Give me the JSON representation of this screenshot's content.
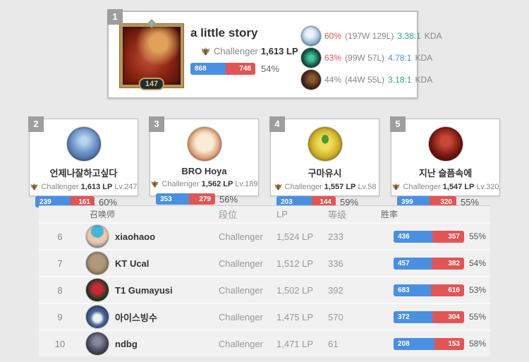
{
  "colors": {
    "win_blue": "#4a90e2",
    "loss_red": "#e25555",
    "wr_red": "#e05555",
    "wr_gray": "#8a8a8a",
    "kda_teal": "#2fa58e",
    "kda_blue": "#4a90e2"
  },
  "top_player": {
    "rank": "1",
    "name": "a little story",
    "tier": "Challenger",
    "lp": "1,613 LP",
    "level": "147",
    "wins": "868",
    "losses": "748",
    "win_rate": "54%",
    "bar_pct": 54,
    "champions": [
      {
        "icon": "champion-1-icon",
        "win_rate": "60%",
        "wr_color": "#e05555",
        "record": "(197W 129L)",
        "kda": "3.38:1",
        "kda_color": "#2fa58e",
        "kda_label": "KDA"
      },
      {
        "icon": "champion-2-icon",
        "win_rate": "63%",
        "wr_color": "#e05555",
        "record": "(99W 57L)",
        "kda": "4.78:1",
        "kda_color": "#4a90e2",
        "kda_label": "KDA"
      },
      {
        "icon": "champion-3-icon",
        "win_rate": "44%",
        "wr_color": "#8a8a8a",
        "record": "(44W 55L)",
        "kda": "3.18:1",
        "kda_color": "#2fa58e",
        "kda_label": "KDA"
      }
    ]
  },
  "cards": [
    {
      "rank": "2",
      "name": "언제나잘하고싶다",
      "tier": "Challenger",
      "lp": "1,613 LP",
      "level": "Lv.247",
      "wins": "239",
      "losses": "161",
      "win_rate": "60%",
      "bar_pct": 60
    },
    {
      "rank": "3",
      "name": "BRO Hoya",
      "tier": "Challenger",
      "lp": "1,562 LP",
      "level": "Lv.189",
      "wins": "353",
      "losses": "279",
      "win_rate": "56%",
      "bar_pct": 56
    },
    {
      "rank": "4",
      "name": "구마유시",
      "tier": "Challenger",
      "lp": "1,557 LP",
      "level": "Lv.58",
      "wins": "203",
      "losses": "144",
      "win_rate": "59%",
      "bar_pct": 59
    },
    {
      "rank": "5",
      "name": "지난 슬픔속에",
      "tier": "Challenger",
      "lp": "1,547 LP",
      "level": "Lv.320",
      "wins": "399",
      "losses": "320",
      "win_rate": "55%",
      "bar_pct": 55
    }
  ],
  "table": {
    "headers": {
      "summoner": "召唤师",
      "tier": "段位",
      "lp": "LP",
      "level": "等级",
      "win_rate": "胜率"
    },
    "rows": [
      {
        "rank": "6",
        "name": "xiaohaoo",
        "tier": "Challenger",
        "lp": "1,524 LP",
        "level": "233",
        "wins": "436",
        "losses": "357",
        "win_rate": "55%",
        "bar_pct": 55
      },
      {
        "rank": "7",
        "name": "KT Ucal",
        "tier": "Challenger",
        "lp": "1,512 LP",
        "level": "336",
        "wins": "457",
        "losses": "382",
        "win_rate": "54%",
        "bar_pct": 54
      },
      {
        "rank": "8",
        "name": "T1 Gumayusi",
        "tier": "Challenger",
        "lp": "1,502 LP",
        "level": "392",
        "wins": "683",
        "losses": "616",
        "win_rate": "53%",
        "bar_pct": 53
      },
      {
        "rank": "9",
        "name": "아이스빙수",
        "tier": "Challenger",
        "lp": "1,475 LP",
        "level": "570",
        "wins": "372",
        "losses": "304",
        "win_rate": "55%",
        "bar_pct": 55
      },
      {
        "rank": "10",
        "name": "ndbg",
        "tier": "Challenger",
        "lp": "1,471 LP",
        "level": "61",
        "wins": "208",
        "losses": "153",
        "win_rate": "58%",
        "bar_pct": 58
      }
    ]
  }
}
